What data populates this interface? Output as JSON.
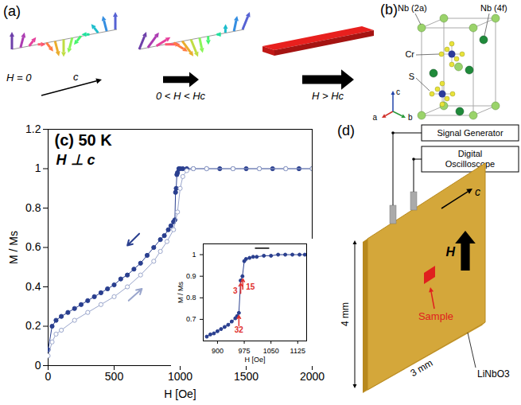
{
  "panel_a": {
    "label": "(a)",
    "states": [
      "H = 0",
      "0 < H < Hc",
      "H > Hc"
    ],
    "axis": "c"
  },
  "panel_b": {
    "label": "(b)",
    "atoms": [
      {
        "label": "Nb (2a)",
        "color": "#9ad36a"
      },
      {
        "label": "Nb (4f)",
        "color": "#1f8a3a"
      },
      {
        "label": "Cr",
        "color": "#2b3a9a"
      },
      {
        "label": "S",
        "color": "#e8e23a"
      }
    ],
    "axes": [
      {
        "label": "a",
        "color": "#d0302a"
      },
      {
        "label": "b",
        "color": "#2a9a3a"
      },
      {
        "label": "c",
        "color": "#2244aa"
      }
    ]
  },
  "chart_data": [
    {
      "type": "scatter",
      "title": "(c) 50 K",
      "subtitle": "H ⊥ c",
      "x_label": "H [Oe]",
      "y_label": "M / Ms",
      "xlim": [
        0,
        2000
      ],
      "xticks": [
        0,
        500,
        1000,
        1500,
        2000
      ],
      "ylim": [
        0,
        1.2
      ],
      "yticks": [
        0,
        0.2,
        0.4,
        0.6,
        0.8,
        1,
        1.2
      ],
      "grid": false,
      "series": [
        {
          "color": "#2a3f8f",
          "marker": "filled circle",
          "line_style": "solid",
          "x": [
            0,
            30,
            60,
            100,
            150,
            200,
            250,
            300,
            350,
            400,
            450,
            500,
            550,
            600,
            650,
            700,
            750,
            800,
            850,
            880,
            910,
            930,
            950,
            960,
            965,
            970,
            975,
            980,
            990,
            1000,
            1020,
            1050,
            1100,
            1200,
            1300,
            1400,
            1500,
            1600,
            1700,
            1800,
            1900,
            2000
          ],
          "values": [
            0.08,
            0.2,
            0.23,
            0.25,
            0.27,
            0.29,
            0.31,
            0.33,
            0.35,
            0.37,
            0.39,
            0.41,
            0.44,
            0.46,
            0.49,
            0.52,
            0.56,
            0.6,
            0.64,
            0.66,
            0.69,
            0.71,
            0.73,
            0.74,
            0.88,
            0.9,
            0.97,
            0.98,
            1,
            1,
            1,
            1,
            1,
            1,
            1,
            1,
            1,
            1,
            1,
            1,
            1,
            1
          ]
        },
        {
          "color": "#9aa6cc",
          "marker": "open circle",
          "line_style": "solid",
          "x": [
            0,
            30,
            60,
            100,
            200,
            300,
            400,
            500,
            600,
            700,
            800,
            850,
            900,
            950,
            980,
            1000,
            1020,
            1050,
            1100,
            1200,
            1400,
            1600,
            1800,
            2000
          ],
          "values": [
            0.05,
            0.12,
            0.16,
            0.18,
            0.23,
            0.27,
            0.31,
            0.35,
            0.4,
            0.46,
            0.53,
            0.58,
            0.63,
            0.69,
            0.78,
            0.9,
            0.96,
            0.99,
            1,
            1,
            1,
            1,
            1,
            1
          ]
        }
      ],
      "arrows": [
        {
          "x1": 690,
          "y1": 0.67,
          "x2": 600,
          "y2": 0.61,
          "color": "#2a3f8f"
        },
        {
          "x1": 610,
          "y1": 0.33,
          "x2": 710,
          "y2": 0.39,
          "color": "#9aa6cc"
        }
      ]
    },
    {
      "type": "scatter",
      "x_label": "H [Oe]",
      "y_label": "M / Ms",
      "xlim": [
        860,
        1150
      ],
      "xticks": [
        900,
        975,
        1050,
        1125
      ],
      "ylim": [
        0.6,
        1.05
      ],
      "yticks": [
        0.7,
        0.8,
        0.9,
        1
      ],
      "grid": false,
      "series": [
        {
          "color": "#2a3f8f",
          "marker": "filled circle",
          "line_style": "solid",
          "x": [
            870,
            880,
            890,
            900,
            910,
            920,
            930,
            940,
            950,
            955,
            960,
            965,
            970,
            975,
            980,
            990,
            1000,
            1010,
            1030,
            1050,
            1070,
            1090,
            1110,
            1130,
            1145
          ],
          "values": [
            0.62,
            0.63,
            0.635,
            0.645,
            0.655,
            0.665,
            0.675,
            0.69,
            0.705,
            0.715,
            0.73,
            0.88,
            0.9,
            0.97,
            0.98,
            0.985,
            0.99,
            0.99,
            0.995,
            0.995,
            1,
            1,
            1,
            1,
            1
          ]
        }
      ],
      "annotations": [
        {
          "text": "32",
          "x": 960,
          "y": 0.73,
          "position": "below",
          "color": "#e0312f"
        },
        {
          "text": "3",
          "x": 965,
          "y": 0.88,
          "position": "left",
          "color": "#e0312f"
        },
        {
          "text": "15",
          "x": 971,
          "y": 0.9,
          "position": "right",
          "color": "#e0312f"
        }
      ],
      "bar": {
        "x": [
          1005,
          1045
        ],
        "y": 1.03
      }
    }
  ],
  "panel_d": {
    "label": "(d)",
    "instruments": [
      "Signal Generator",
      "Digital Oscilloscope"
    ],
    "dimensions": [
      "4 mm",
      "3 mm"
    ],
    "field": "H",
    "axis": "c",
    "sample": "Sample",
    "substrate": "LiNbO3"
  }
}
